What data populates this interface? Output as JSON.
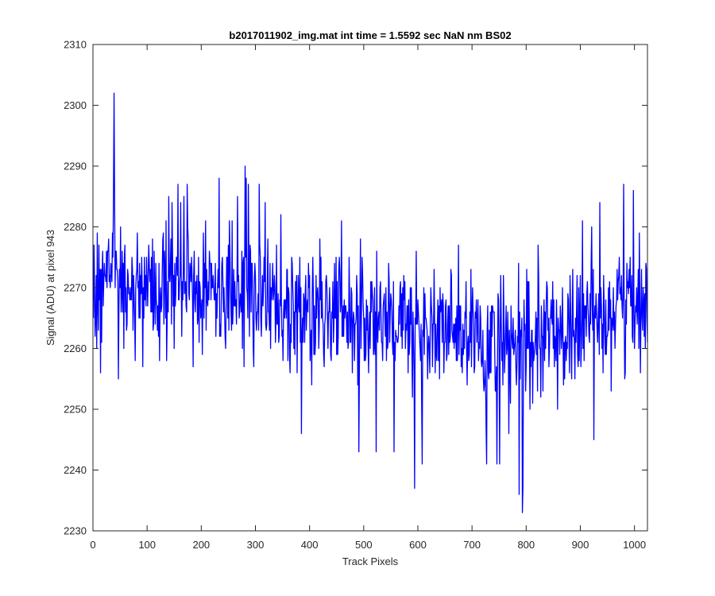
{
  "chart_data": {
    "type": "line",
    "title": "b2017011902_img.mat int time = 1.5592 sec  NaN nm BS02",
    "xlabel": "Track Pixels",
    "ylabel": "Signal (ADU) at pixel 943",
    "xlim": [
      0,
      1024
    ],
    "ylim": [
      2230,
      2310
    ],
    "xticks": [
      0,
      100,
      200,
      300,
      400,
      500,
      600,
      700,
      800,
      900,
      1000
    ],
    "xtick_labels": [
      "0",
      "100",
      "200",
      "300",
      "400",
      "500",
      "600",
      "700",
      "800",
      "900",
      "1000"
    ],
    "yticks": [
      2230,
      2240,
      2250,
      2260,
      2270,
      2280,
      2290,
      2300,
      2310
    ],
    "ytick_labels": [
      "2230",
      "2240",
      "2250",
      "2260",
      "2270",
      "2280",
      "2290",
      "2300",
      "2310"
    ],
    "grid": false,
    "legend": "none",
    "series": [
      {
        "color": "#0000ff",
        "mean_profile": {
          "x": [
            0,
            40,
            80,
            120,
            160,
            200,
            240,
            280,
            320,
            360,
            400,
            440,
            480,
            520,
            560,
            600,
            640,
            680,
            720,
            760,
            800,
            840,
            880,
            920,
            960,
            1000,
            1024
          ],
          "y": [
            2270,
            2273,
            2269,
            2269,
            2270,
            2270,
            2270,
            2270,
            2269,
            2267,
            2266,
            2266,
            2266,
            2265,
            2265,
            2263,
            2263,
            2262,
            2261,
            2260,
            2260,
            2262,
            2263,
            2265,
            2267,
            2268,
            2268
          ]
        },
        "noise_amplitude": 5.5,
        "spikes": {
          "x": [
            38,
            39,
            40,
            47,
            140,
            157,
            174,
            233,
            281,
            283,
            287,
            307,
            385,
            491,
            523,
            556,
            594,
            608,
            727,
            746,
            751,
            787,
            793,
            794,
            936,
            980
          ],
          "y": [
            2287,
            2302,
            2284,
            2255,
            2285,
            2287,
            2287,
            2288,
            2290,
            2288,
            2287,
            2287,
            2246,
            2243,
            2243,
            2243,
            2237,
            2241,
            2241,
            2241,
            2241,
            2236,
            2233,
            2237,
            2284,
            2287
          ]
        },
        "points": 1024
      }
    ]
  }
}
